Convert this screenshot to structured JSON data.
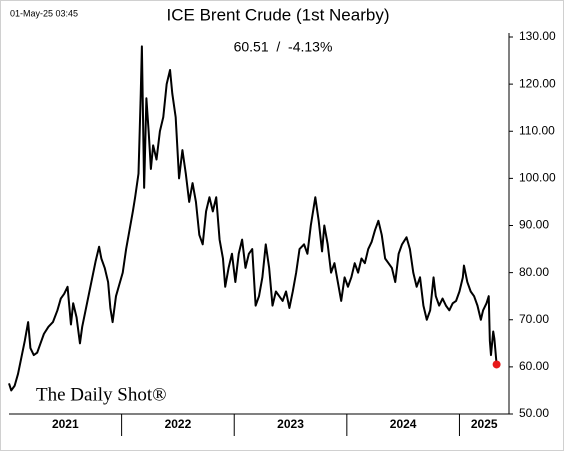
{
  "chart_data": {
    "type": "line",
    "title": "ICE Brent Crude (1st Nearby)",
    "subtitle": "60.51  /  -4.13%",
    "timestamp": "01-May-25 03:45",
    "watermark": "The Daily Shot®",
    "color": "#000000",
    "last_point_color": "#e8191a",
    "x": [
      2021.0,
      2021.02,
      2021.05,
      2021.08,
      2021.11,
      2021.14,
      2021.17,
      2021.19,
      2021.22,
      2021.25,
      2021.28,
      2021.31,
      2021.35,
      2021.39,
      2021.43,
      2021.46,
      2021.49,
      2021.52,
      2021.55,
      2021.57,
      2021.6,
      2021.63,
      2021.65,
      2021.68,
      2021.71,
      2021.74,
      2021.77,
      2021.8,
      2021.82,
      2021.85,
      2021.88,
      2021.9,
      2021.92,
      2021.95,
      2021.98,
      2022.01,
      2022.04,
      2022.07,
      2022.1,
      2022.12,
      2022.15,
      2022.17,
      2022.18,
      2022.2,
      2022.22,
      2022.24,
      2022.26,
      2022.28,
      2022.31,
      2022.34,
      2022.37,
      2022.4,
      2022.43,
      2022.45,
      2022.48,
      2022.51,
      2022.54,
      2022.57,
      2022.6,
      2022.63,
      2022.66,
      2022.69,
      2022.72,
      2022.75,
      2022.78,
      2022.81,
      2022.84,
      2022.87,
      2022.9,
      2022.92,
      2022.95,
      2022.98,
      2023.01,
      2023.04,
      2023.07,
      2023.1,
      2023.13,
      2023.16,
      2023.19,
      2023.22,
      2023.25,
      2023.28,
      2023.31,
      2023.34,
      2023.37,
      2023.4,
      2023.43,
      2023.46,
      2023.49,
      2023.52,
      2023.55,
      2023.58,
      2023.62,
      2023.65,
      2023.68,
      2023.72,
      2023.75,
      2023.78,
      2023.8,
      2023.83,
      2023.86,
      2023.89,
      2023.92,
      2023.95,
      2023.98,
      2024.01,
      2024.04,
      2024.07,
      2024.1,
      2024.13,
      2024.16,
      2024.19,
      2024.22,
      2024.25,
      2024.28,
      2024.31,
      2024.34,
      2024.37,
      2024.4,
      2024.43,
      2024.46,
      2024.49,
      2024.53,
      2024.56,
      2024.59,
      2024.62,
      2024.65,
      2024.68,
      2024.71,
      2024.74,
      2024.77,
      2024.79,
      2024.82,
      2024.85,
      2024.88,
      2024.91,
      2024.94,
      2024.97,
      2025.0,
      2025.03,
      2025.04,
      2025.07,
      2025.1,
      2025.13,
      2025.16,
      2025.19,
      2025.21,
      2025.24,
      2025.26,
      2025.27,
      2025.28,
      2025.3,
      2025.31,
      2025.33
    ],
    "values": [
      56.5,
      55.0,
      56,
      58.5,
      62,
      65.5,
      69.5,
      64,
      62.5,
      63,
      65,
      67,
      68.5,
      69.5,
      72,
      74.5,
      75.5,
      77,
      69,
      73.5,
      70.5,
      65,
      68.5,
      72,
      75.5,
      79,
      82.5,
      85.5,
      83,
      81,
      78,
      72.5,
      69.5,
      75,
      77.5,
      80,
      85,
      89,
      93,
      96,
      101,
      118,
      128,
      98,
      117,
      110,
      102,
      107,
      104,
      110,
      113,
      120,
      123,
      118,
      113,
      100,
      106,
      101,
      95,
      99,
      95,
      88,
      86,
      93,
      96,
      93,
      96,
      87,
      83,
      77,
      81,
      84,
      78,
      84,
      87,
      81,
      84,
      85,
      73,
      75,
      79,
      86,
      81,
      73,
      76,
      75,
      74,
      76,
      72.5,
      76,
      80,
      85,
      86,
      84,
      90,
      96,
      91,
      84.5,
      90,
      86,
      80,
      82,
      78,
      74,
      79,
      77,
      79,
      82,
      80,
      83,
      82,
      85,
      86.5,
      89,
      91,
      88,
      83,
      82,
      81,
      78,
      84,
      86,
      87.5,
      85,
      80,
      77,
      79,
      73,
      70,
      72,
      79,
      75,
      73,
      74.5,
      73,
      72,
      73.5,
      74,
      76,
      79,
      81.5,
      78,
      76,
      75,
      73,
      70,
      72,
      73.5,
      75,
      65.5,
      62.5,
      67.5,
      66,
      60.51
    ],
    "xlim": [
      2021,
      2025.44
    ],
    "xticks": [
      {
        "value": 2021.5,
        "label": "2021"
      },
      {
        "value": 2022.5,
        "label": "2022"
      },
      {
        "value": 2023.5,
        "label": "2023"
      },
      {
        "value": 2024.5,
        "label": "2024"
      },
      {
        "value": 2025.22,
        "label": "2025"
      }
    ],
    "ylim": [
      50,
      130
    ],
    "yticks": [
      {
        "value": 50,
        "label": "50.00"
      },
      {
        "value": 60,
        "label": "60.00"
      },
      {
        "value": 70,
        "label": "70.00"
      },
      {
        "value": 80,
        "label": "80.00"
      },
      {
        "value": 90,
        "label": "90.00"
      },
      {
        "value": 100,
        "label": "100.00"
      },
      {
        "value": 110,
        "label": "110.00"
      },
      {
        "value": 120,
        "label": "120.00"
      },
      {
        "value": 130,
        "label": "130.00"
      }
    ]
  }
}
